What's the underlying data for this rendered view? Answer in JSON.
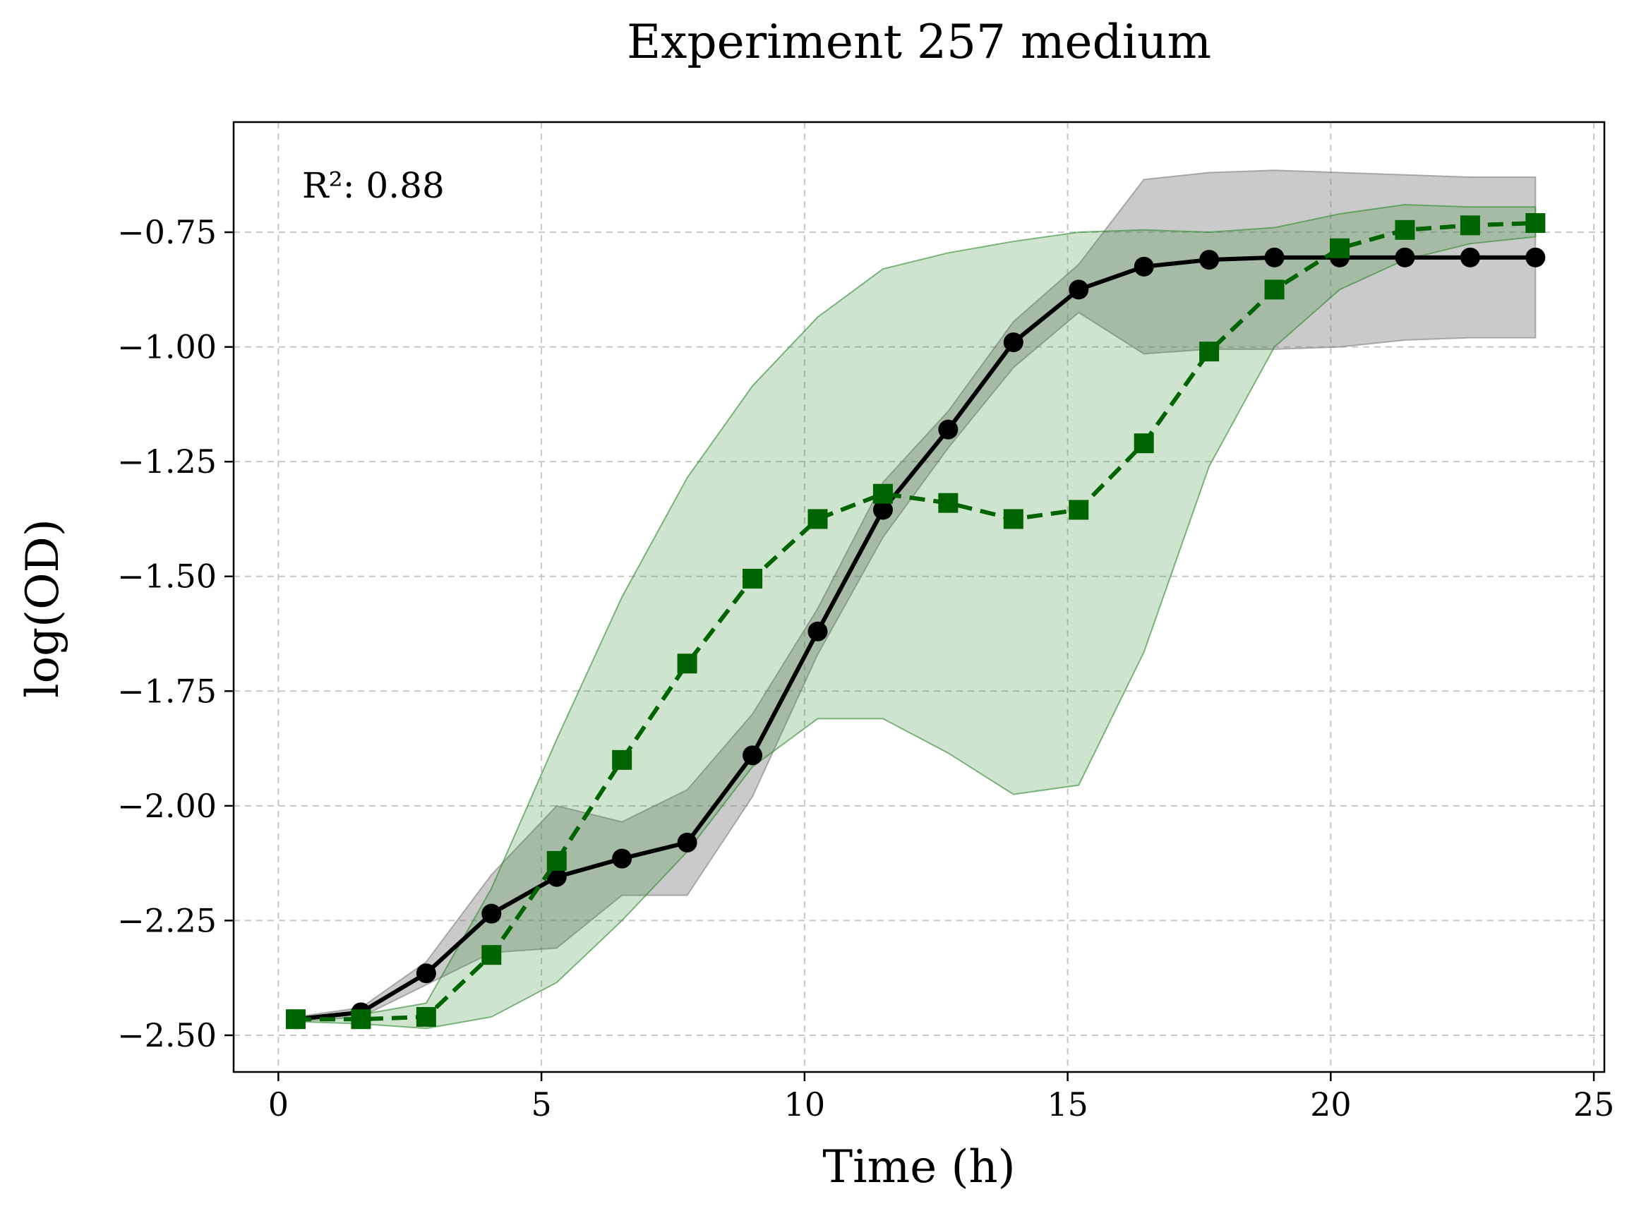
{
  "chart_data": {
    "type": "line",
    "title": "Experiment 257 medium",
    "xlabel": "Time (h)",
    "ylabel": "log(OD)",
    "annotation": "R²: 0.88",
    "xlim": [
      -0.85,
      25.2
    ],
    "ylim": [
      -2.58,
      -0.51
    ],
    "xticks": [
      0,
      5,
      10,
      15,
      20,
      25
    ],
    "xtick_labels": [
      "0",
      "5",
      "10",
      "15",
      "20",
      "25"
    ],
    "yticks": [
      -2.5,
      -2.25,
      -2.0,
      -1.75,
      -1.5,
      -1.25,
      -1.0,
      -0.75
    ],
    "ytick_labels": [
      "−2.50",
      "−2.25",
      "−2.00",
      "−1.75",
      "−1.50",
      "−1.25",
      "−1.00",
      "−0.75"
    ],
    "grid": true,
    "x": [
      0.33,
      1.57,
      2.81,
      4.05,
      5.29,
      6.53,
      7.77,
      9.01,
      10.25,
      11.49,
      12.73,
      13.97,
      15.21,
      16.45,
      17.69,
      18.93,
      20.17,
      21.41,
      22.65,
      23.89
    ],
    "series": [
      {
        "color": "#000000",
        "linestyle": "solid",
        "marker": "circle",
        "band_color": "#808080",
        "values": [
          -2.465,
          -2.45,
          -2.365,
          -2.235,
          -2.155,
          -2.115,
          -2.08,
          -1.89,
          -1.62,
          -1.355,
          -1.18,
          -0.99,
          -0.875,
          -0.825,
          -0.81,
          -0.805,
          -0.805,
          -0.805,
          -0.805,
          -0.805
        ],
        "band_lower": [
          -2.47,
          -2.46,
          -2.39,
          -2.32,
          -2.31,
          -2.195,
          -2.195,
          -1.98,
          -1.67,
          -1.415,
          -1.22,
          -1.045,
          -0.925,
          -1.015,
          -1.005,
          -1.005,
          -1.0,
          -0.985,
          -0.98,
          -0.98
        ],
        "band_upper": [
          -2.46,
          -2.44,
          -2.34,
          -2.15,
          -2.0,
          -2.035,
          -1.965,
          -1.8,
          -1.57,
          -1.295,
          -1.14,
          -0.945,
          -0.82,
          -0.635,
          -0.62,
          -0.615,
          -0.62,
          -0.625,
          -0.63,
          -0.63
        ]
      },
      {
        "color": "#006400",
        "linestyle": "dashed",
        "marker": "square",
        "band_color": "#2e8b2e",
        "values": [
          -2.465,
          -2.465,
          -2.46,
          -2.325,
          -2.12,
          -1.9,
          -1.69,
          -1.505,
          -1.375,
          -1.32,
          -1.34,
          -1.375,
          -1.355,
          -1.21,
          -1.01,
          -0.875,
          -0.785,
          -0.745,
          -0.735,
          -0.73
        ],
        "band_lower": [
          -2.47,
          -2.475,
          -2.485,
          -2.46,
          -2.385,
          -2.25,
          -2.1,
          -1.915,
          -1.81,
          -1.81,
          -1.885,
          -1.975,
          -1.955,
          -1.665,
          -1.26,
          -1.0,
          -0.875,
          -0.81,
          -0.775,
          -0.76
        ],
        "band_upper": [
          -2.46,
          -2.455,
          -2.43,
          -2.18,
          -1.855,
          -1.545,
          -1.285,
          -1.085,
          -0.935,
          -0.83,
          -0.795,
          -0.77,
          -0.75,
          -0.745,
          -0.75,
          -0.74,
          -0.71,
          -0.69,
          -0.695,
          -0.695
        ]
      }
    ]
  }
}
